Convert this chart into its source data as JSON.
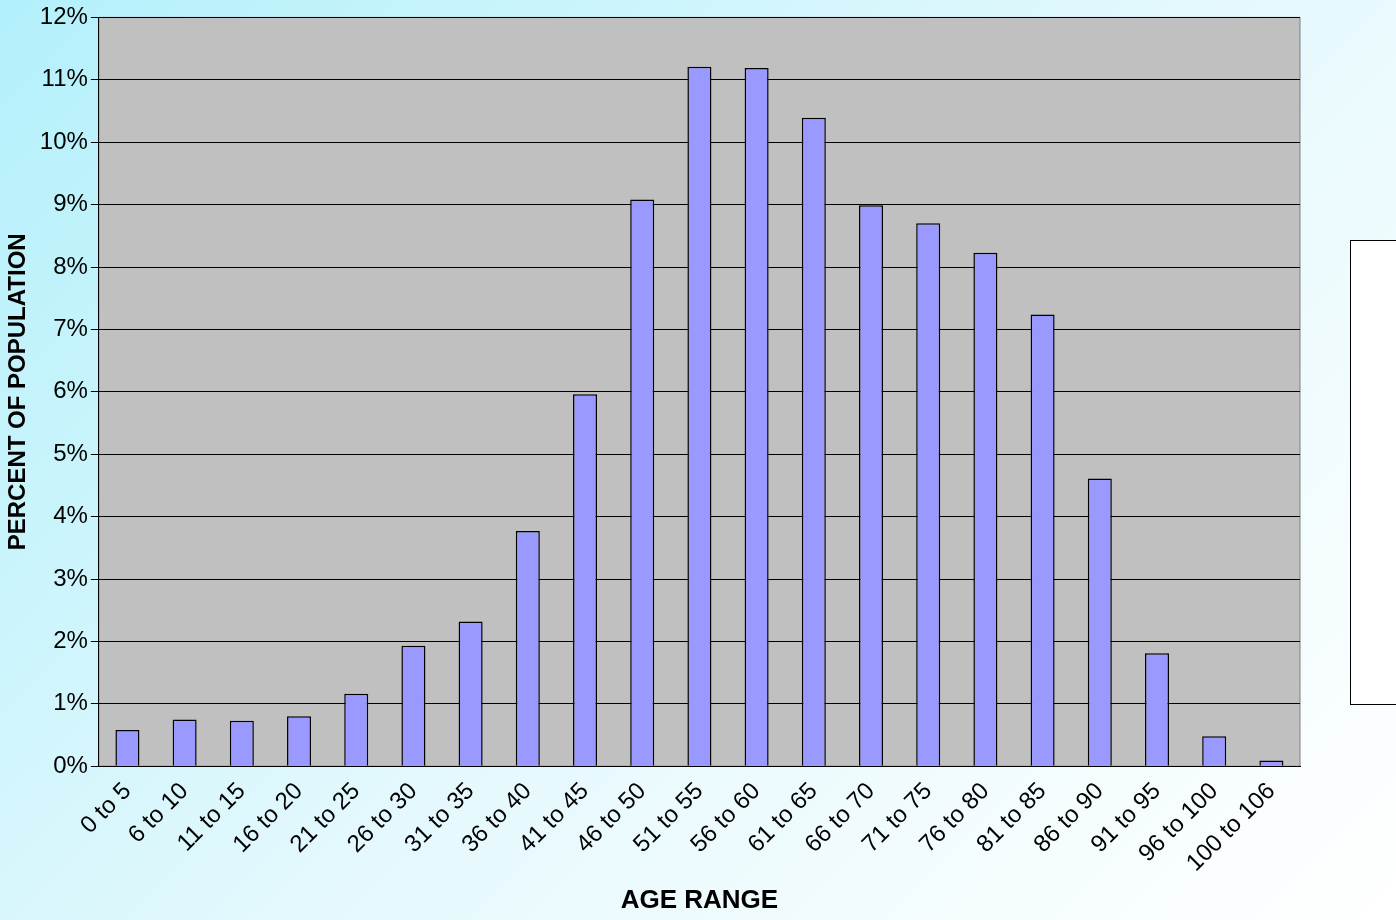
{
  "chart_data": {
    "type": "bar",
    "xlabel": "AGE RANGE",
    "ylabel": "PERCENT OF POPULATION",
    "categories": [
      "0 to 5",
      "6 to 10",
      "11 to 15",
      "16 to 20",
      "21 to 25",
      "26 to 30",
      "31 to 35",
      "36 to 40",
      "41 to 45",
      "46 to 50",
      "51 to 55",
      "56 to 60",
      "61 to 65",
      "66 to 70",
      "71 to 75",
      "76 to 80",
      "81 to 85",
      "86 to 90",
      "91 to 95",
      "96 to 100",
      "100 to 106"
    ],
    "values": [
      0.58,
      0.75,
      0.73,
      0.8,
      1.16,
      1.93,
      2.32,
      3.77,
      5.96,
      9.08,
      11.21,
      11.19,
      10.39,
      8.99,
      8.7,
      8.23,
      7.24,
      4.61,
      1.81,
      0.48,
      0.09
    ],
    "color": "#9999ff",
    "ylim": [
      0,
      12
    ],
    "yticks": [
      {
        "value": 0,
        "label": "0%"
      },
      {
        "value": 1,
        "label": "1%"
      },
      {
        "value": 2,
        "label": "2%"
      },
      {
        "value": 3,
        "label": "3%"
      },
      {
        "value": 4,
        "label": "4%"
      },
      {
        "value": 5,
        "label": "5%"
      },
      {
        "value": 6,
        "label": "6%"
      },
      {
        "value": 7,
        "label": "7%"
      },
      {
        "value": 8,
        "label": "8%"
      },
      {
        "value": 9,
        "label": "9%"
      },
      {
        "value": 10,
        "label": "10%"
      },
      {
        "value": 11,
        "label": "11%"
      },
      {
        "value": 12,
        "label": "12%"
      }
    ],
    "grid": "y",
    "legend": false
  }
}
